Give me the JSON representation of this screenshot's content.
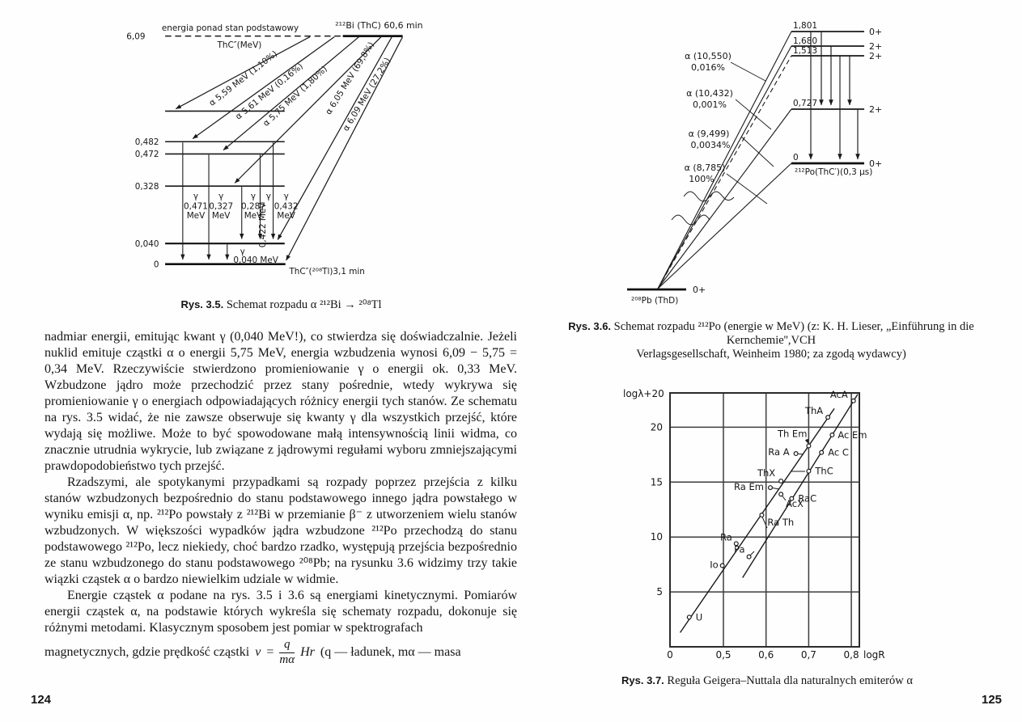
{
  "page_left": {
    "figure35": {
      "note_line1": "energia ponad stan podstawowy",
      "note_line2": "ThC″(MeV)",
      "parent_energy": "6,09",
      "parent_label": "²¹²Bi (ThC) 60,6 min",
      "level_labels": [
        "0,482",
        "0,472",
        "0,328",
        "0,040",
        "0"
      ],
      "alpha_labels": [
        "α 5,59 MeV (1,10%)",
        "α 5,61 MeV (0,16%)",
        "α 5,75 MeV (1,80%)",
        "α 6,05 MeV (69,8%)",
        "α 6,09 MeV (27,2%)"
      ],
      "gammas": [
        {
          "sym": "γ",
          "val": "0,471",
          "unit": "MeV"
        },
        {
          "sym": "γ",
          "val": "0,327",
          "unit": "MeV"
        },
        {
          "sym": "γ",
          "val": "0,287",
          "unit": "MeV"
        },
        {
          "sym": "γ",
          "val": "0,422 MeV"
        },
        {
          "sym": "γ",
          "val": "0,432",
          "unit": "MeV"
        },
        {
          "sym": "γ",
          "val": "0,040 MeV"
        }
      ],
      "daughter_label": "ThC″(²⁰⁸Tl)3,1 min",
      "caption_prefix": "Rys. 3.5.",
      "caption_text": " Schemat rozpadu α ²¹²Bi → ²⁰⁸Tl"
    },
    "paragraphs": [
      "nadmiar energii, emitując kwant γ (0,040 MeV!), co stwierdza się doświadczalnie. Jeżeli nuklid emituje cząstki α o energii 5,75 MeV, energia wzbudzenia wynosi 6,09 − 5,75 = 0,34 MeV. Rzeczywiście stwierdzono promieniowanie γ o energii ok. 0,33 MeV. Wzbudzone jądro może przechodzić przez stany pośrednie, wtedy wykrywa się promieniowanie γ o energiach odpowiadających różnicy energii tych stanów. Ze schematu na rys. 3.5 widać, że nie zawsze obserwuje się kwanty γ dla wszystkich przejść, które wydają się możliwe. Może to być spowodowane małą intensywnością linii widma, co znacznie utrudnia wykrycie, lub związane z jądrowymi regułami wyboru zmniejszającymi prawdopodobieństwo tych przejść.",
      "Rzadszymi, ale spotykanymi przypadkami są rozpady poprzez przejścia z kilku stanów wzbudzonych bezpośrednio do stanu podstawowego innego jądra powstałego w wyniku emisji α, np. ²¹²Po powstały z ²¹²Bi w przemianie β⁻ z utworzeniem wielu stanów wzbudzonych. W większości wypadków jądra wzbudzone ²¹²Po przechodzą do stanu podstawowego ²¹²Po, lecz niekiedy, choć bardzo rzadko, występują przejścia bezpośrednio ze stanu wzbudzonego do stanu podstawowego ²⁰⁸Pb; na rysunku 3.6 widzimy trzy takie wiązki cząstek α o bardzo niewielkim udziale w widmie.",
      "Energie cząstek α podane na rys. 3.5 i 3.6 są energiami kinetycznymi. Pomiarów energii cząstek α, na podstawie których wykreśla się schematy rozpadu, dokonuje się różnymi metodami. Klasycznym sposobem jest pomiar w spektrografach"
    ],
    "formula": {
      "lead": "magnetycznych, gdzie prędkość cząstki",
      "v": "v",
      "eq": "=",
      "num": "q",
      "den": "mα",
      "hr": "Hr",
      "tail": "(q — ładunek, mα — masa"
    },
    "page_number": "124"
  },
  "page_right": {
    "figure36": {
      "po_levels": [
        {
          "e": "1,801",
          "spin": "0+"
        },
        {
          "e": "1,680",
          "spin": "2+"
        },
        {
          "e": "1,513",
          "spin": "2+"
        },
        {
          "e": "0,727",
          "spin": "2+"
        },
        {
          "e": "0",
          "spin": "0+"
        }
      ],
      "po_label": "²¹²Po(ThC′)(0,3 μs)",
      "alphas": [
        {
          "energy": "α (10,550)",
          "intensity": "0,016%"
        },
        {
          "energy": "α (10,432)",
          "intensity": "0,001%"
        },
        {
          "energy": "α (9,499)",
          "intensity": "0,0034%"
        },
        {
          "energy": "α (8,785)",
          "intensity": "100%"
        }
      ],
      "pb_label": "²⁰⁸Pb (ThD)",
      "pb_spin": "0+",
      "caption_prefix": "Rys. 3.6.",
      "caption_line1": " Schemat rozpadu ²¹²Po (energie w MeV) (z: K. H. Lieser, „Einführung in die Kernchemie'',VCH",
      "caption_line2": "Verlagsgesellschaft, Weinheim 1980; za zgodą wydawcy)"
    },
    "figure37": {
      "caption_prefix": "Rys. 3.7.",
      "caption_text": " Reguła Geigera–Nuttala dla naturalnych emiterów α"
    },
    "page_number": "125"
  },
  "chart_data": {
    "type": "scatter",
    "title": "Reguła Geigera–Nuttala dla naturalnych emiterów α",
    "xlabel": "logR",
    "ylabel": "logλ+20",
    "grid": true,
    "ylim": [
      0,
      23.1
    ],
    "x_ticks": [
      {
        "label": "0",
        "x": 0
      },
      {
        "label": "0,5",
        "x": 0.5
      },
      {
        "label": "0,6",
        "x": 0.6
      },
      {
        "label": "0,7",
        "x": 0.7
      },
      {
        "label": "0,8",
        "x": 0.8
      }
    ],
    "y_ticks": [
      {
        "label": "5",
        "y": 5
      },
      {
        "label": "10",
        "y": 10
      },
      {
        "label": "15",
        "y": 15
      },
      {
        "label": "20",
        "y": 20
      }
    ],
    "trend_lines": [
      {
        "from": [
          0.095,
          1.3
        ],
        "to": [
          0.76,
          21.7
        ]
      },
      {
        "from": [
          0.545,
          6.3
        ],
        "to": [
          0.815,
          23.0
        ]
      }
    ],
    "series": [
      {
        "name": "line_left",
        "points": [
          {
            "label": "U",
            "x": 0.18,
            "y": 2.7
          },
          {
            "label": "Io",
            "x": 0.49,
            "y": 7.4
          },
          {
            "label": "Ra",
            "x": 0.53,
            "y": 9.4
          },
          {
            "label": "Ra Em",
            "x": 0.61,
            "y": 14.5
          },
          {
            "label": "ThX",
            "x": 0.635,
            "y": 15.1
          },
          {
            "label": "Ra A",
            "x": 0.67,
            "y": 17.6
          },
          {
            "label": "Th Em",
            "x": 0.7,
            "y": 18.3
          },
          {
            "label": "ThA",
            "x": 0.745,
            "y": 20.9
          }
        ]
      },
      {
        "name": "line_right",
        "points": [
          {
            "label": "Pa",
            "x": 0.56,
            "y": 8.2
          },
          {
            "label": "Ra Th",
            "x": 0.59,
            "y": 12.0
          },
          {
            "label": "AcX",
            "x": 0.635,
            "y": 13.9
          },
          {
            "label": "RaC",
            "x": 0.66,
            "y": 13.5
          },
          {
            "label": "ThC",
            "x": 0.7,
            "y": 16.0
          },
          {
            "label": "Ac C",
            "x": 0.73,
            "y": 17.7
          },
          {
            "label": "Ac Em",
            "x": 0.755,
            "y": 19.3
          },
          {
            "label": "AcA",
            "x": 0.805,
            "y": 22.4
          }
        ]
      }
    ]
  }
}
